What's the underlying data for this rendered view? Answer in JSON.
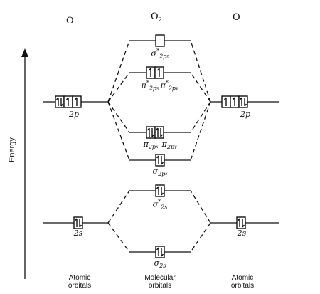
{
  "headers": {
    "left_atom": "O",
    "molecule": "O",
    "molecule_subscript": "2",
    "right_atom": "O"
  },
  "axis": {
    "label": "Energy"
  },
  "captions": {
    "left": [
      "Atomic",
      "orbitals"
    ],
    "center": [
      "Molecular",
      "orbitals"
    ],
    "right": [
      "Atomic",
      "orbitals"
    ]
  },
  "orbital_labels": {
    "left_2p": "2p",
    "right_2p": "2p",
    "left_2s": "2s",
    "right_2s": "2s",
    "sigma_star_2pz": {
      "symbol": "σ",
      "sup": "*",
      "sub": "2p",
      "subsub": "z"
    },
    "pi_star_2px": {
      "symbol": "π",
      "sup": "*",
      "sub": "2p",
      "subsub": "x"
    },
    "pi_star_2py": {
      "symbol": "π",
      "sup": "*",
      "sub": "2p",
      "subsub": "y"
    },
    "pi_2px": {
      "symbol": "π",
      "sub": "2p",
      "subsub": "x"
    },
    "pi_2py": {
      "symbol": "π",
      "sub": "2p",
      "subsub": "y"
    },
    "sigma_2pz": {
      "symbol": "σ",
      "sub": "2p",
      "subsub": "z"
    },
    "sigma_star_2s": {
      "symbol": "σ",
      "sup": "*",
      "sub": "2s"
    },
    "sigma_2s": {
      "symbol": "σ",
      "sub": "2s"
    }
  },
  "orbital_boxes": {
    "left_2p": [
      "paired",
      "up",
      "up"
    ],
    "right_2p": [
      "up",
      "up",
      "paired"
    ],
    "sigma_star_2pz": [
      "empty"
    ],
    "pi_star_2p": [
      "up",
      "up"
    ],
    "pi_2p": [
      "paired",
      "paired"
    ],
    "sigma_2pz": [
      "paired"
    ],
    "sigma_star_2s": [
      "paired"
    ],
    "left_2s": [
      "paired"
    ],
    "right_2s": [
      "paired"
    ],
    "sigma_2s": [
      "paired"
    ]
  }
}
